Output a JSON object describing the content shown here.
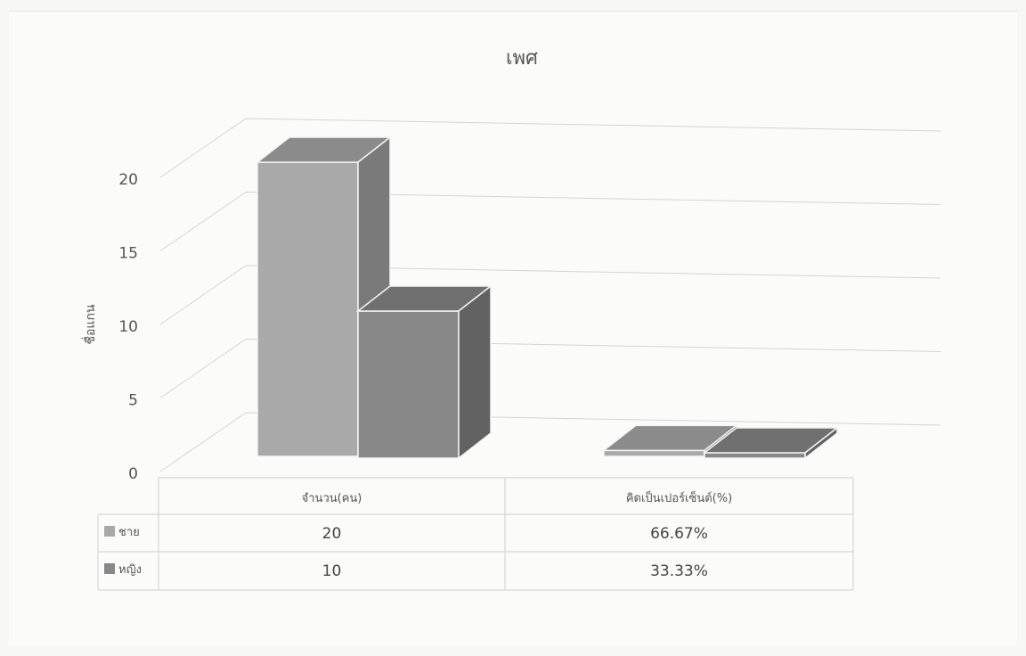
{
  "chart_data": {
    "type": "bar",
    "style": "3d-clustered-column",
    "title": "เพศ",
    "ylabel": "ชื่อแกน",
    "xlabel": "",
    "ylim": [
      0,
      20
    ],
    "y_ticks": [
      "0",
      "5",
      "10",
      "15",
      "20"
    ],
    "grid": true,
    "legend": "data-table",
    "categories": [
      "จำนวน(คน)",
      "คิดเป็นเปอร์เซ็นต์(%)"
    ],
    "series": [
      {
        "name": "ชาย",
        "values": [
          20,
          0.6667
        ],
        "labels": [
          "20",
          "66.67%"
        ],
        "color": "#a9a9a9"
      },
      {
        "name": "หญิง",
        "values": [
          10,
          0.3333
        ],
        "labels": [
          "10",
          "33.33%"
        ],
        "color": "#888888"
      }
    ]
  }
}
